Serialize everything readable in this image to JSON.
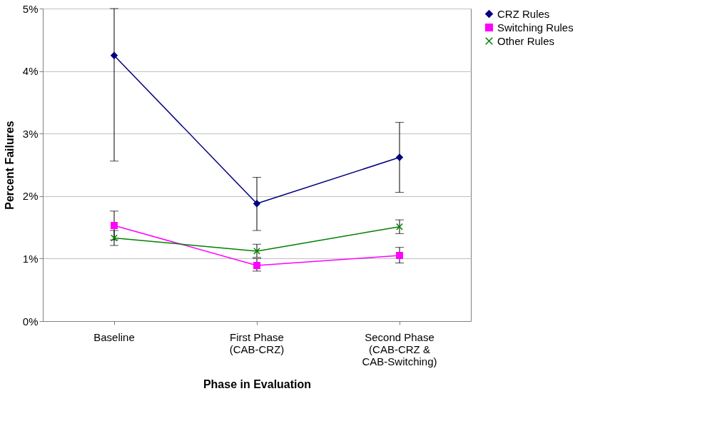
{
  "chart_data": {
    "type": "line",
    "xlabel": "Phase in Evaluation",
    "ylabel": "Percent Failures",
    "categories": [
      "Baseline",
      "First Phase\n(CAB-CRZ)",
      "Second Phase\n(CAB-CRZ &\nCAB-Switching)"
    ],
    "series": [
      {
        "name": "CRZ Rules",
        "color": "#000080",
        "marker": "diamond",
        "values": [
          4.25,
          1.88,
          2.62
        ],
        "errors": [
          [
            2.56,
            5.0
          ],
          [
            1.45,
            2.3
          ],
          [
            2.06,
            3.18
          ]
        ]
      },
      {
        "name": "Switching Rules",
        "color": "#ff00ff",
        "marker": "square",
        "values": [
          1.53,
          0.89,
          1.05
        ],
        "errors": [
          [
            1.3,
            1.76
          ],
          [
            0.8,
            1.0
          ],
          [
            0.93,
            1.18
          ]
        ]
      },
      {
        "name": "Other Rules",
        "color": "#008000",
        "marker": "cross",
        "values": [
          1.33,
          1.12,
          1.51
        ],
        "errors": [
          [
            1.21,
            1.45
          ],
          [
            1.02,
            1.23
          ],
          [
            1.4,
            1.62
          ]
        ]
      }
    ],
    "ylim": [
      0,
      5
    ],
    "yticks": [
      {
        "value": 0,
        "label": "0%"
      },
      {
        "value": 1,
        "label": "1%"
      },
      {
        "value": 2,
        "label": "2%"
      },
      {
        "value": 3,
        "label": "3%"
      },
      {
        "value": 4,
        "label": "4%"
      },
      {
        "value": 5,
        "label": "5%"
      }
    ],
    "grid": "y",
    "legend": "right",
    "line_style": "solid"
  }
}
